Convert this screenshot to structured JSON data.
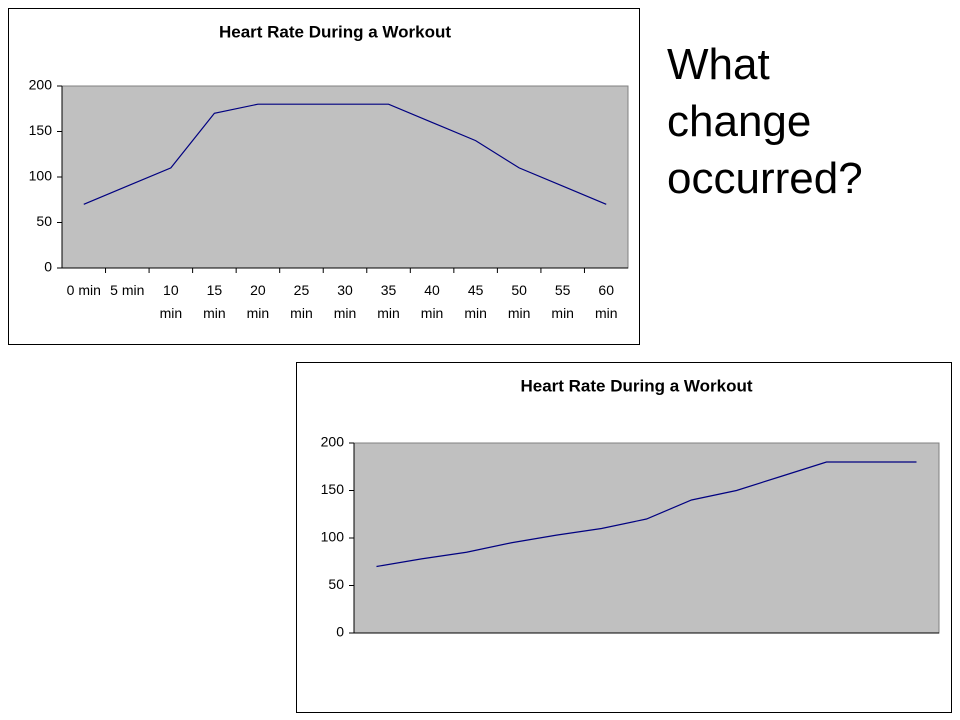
{
  "question": "What change occurred?",
  "chart_data": [
    {
      "type": "line",
      "title": "Heart Rate During a Workout",
      "categories": [
        "0 min",
        "5 min",
        "10 min",
        "15 min",
        "20 min",
        "25 min",
        "30 min",
        "35 min",
        "40 min",
        "45 min",
        "50 min",
        "55 min",
        "60 min"
      ],
      "series": [
        {
          "color": "#000080",
          "values": [
            70,
            90,
            110,
            170,
            180,
            180,
            180,
            180,
            160,
            140,
            110,
            90,
            70
          ]
        }
      ],
      "ylim": [
        0,
        200
      ],
      "yticks": [
        0,
        50,
        100,
        150,
        200
      ],
      "plot_color": "#c0c0c0"
    },
    {
      "type": "line",
      "title": "Heart Rate During a Workout",
      "categories": [
        null,
        null,
        null,
        null,
        null,
        null,
        null,
        null,
        null,
        null,
        null,
        null,
        null
      ],
      "series": [
        {
          "color": "#000080",
          "values": [
            70,
            78,
            85,
            95,
            103,
            110,
            120,
            140,
            150,
            165,
            180,
            180,
            180
          ]
        }
      ],
      "ylim": [
        0,
        200
      ],
      "yticks": [
        0,
        50,
        100,
        150,
        200
      ],
      "plot_color": "#c0c0c0"
    }
  ]
}
